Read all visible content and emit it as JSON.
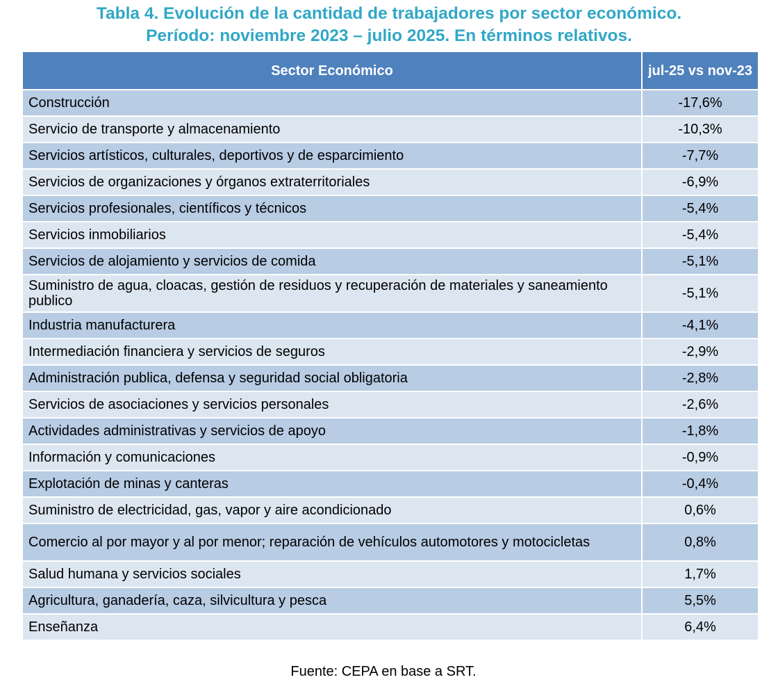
{
  "title": {
    "line1": "Tabla 4. Evolución de la cantidad de trabajadores por sector económico.",
    "line2": "Período: noviembre 2023 – julio 2025. En términos relativos."
  },
  "table": {
    "headers": [
      "Sector Económico",
      "jul-25 vs nov-23"
    ],
    "rows": [
      {
        "sector": "Construcción",
        "value": "-17,6%"
      },
      {
        "sector": "Servicio de transporte y almacenamiento",
        "value": "-10,3%"
      },
      {
        "sector": "Servicios artísticos, culturales, deportivos y de esparcimiento",
        "value": "-7,7%"
      },
      {
        "sector": "Servicios de organizaciones y órganos extraterritoriales",
        "value": "-6,9%"
      },
      {
        "sector": "Servicios profesionales, científicos y técnicos",
        "value": "-5,4%"
      },
      {
        "sector": "Servicios inmobiliarios",
        "value": "-5,4%"
      },
      {
        "sector": "Servicios de alojamiento y servicios de comida",
        "value": "-5,1%"
      },
      {
        "sector": "Suministro de agua, cloacas, gestión de residuos y recuperación de materiales y saneamiento publico",
        "value": "-5,1%"
      },
      {
        "sector": "Industria manufacturera",
        "value": "-4,1%"
      },
      {
        "sector": "Intermediación financiera y servicios de seguros",
        "value": "-2,9%"
      },
      {
        "sector": "Administración publica, defensa y seguridad social obligatoria",
        "value": "-2,8%"
      },
      {
        "sector": "Servicios de asociaciones y servicios personales",
        "value": "-2,6%"
      },
      {
        "sector": "Actividades administrativas y servicios de apoyo",
        "value": "-1,8%"
      },
      {
        "sector": "Información y comunicaciones",
        "value": "-0,9%"
      },
      {
        "sector": "Explotación de minas y canteras",
        "value": "-0,4%"
      },
      {
        "sector": "Suministro de electricidad, gas, vapor y aire acondicionado",
        "value": "0,6%"
      },
      {
        "sector": "Comercio al por mayor y al por menor; reparación de vehículos automotores y motocicletas",
        "value": "0,8%"
      },
      {
        "sector": "Salud humana y servicios sociales",
        "value": "1,7%"
      },
      {
        "sector": "Agricultura, ganadería, caza, silvicultura y pesca",
        "value": "5,5%"
      },
      {
        "sector": "Enseñanza",
        "value": "6,4%"
      }
    ]
  },
  "source": "Fuente: CEPA en base a SRT.",
  "colors": {
    "title": "#31A7C6",
    "header": "#4F81BD",
    "row_odd": "#B8CCE4",
    "row_even": "#DCE6F1"
  }
}
